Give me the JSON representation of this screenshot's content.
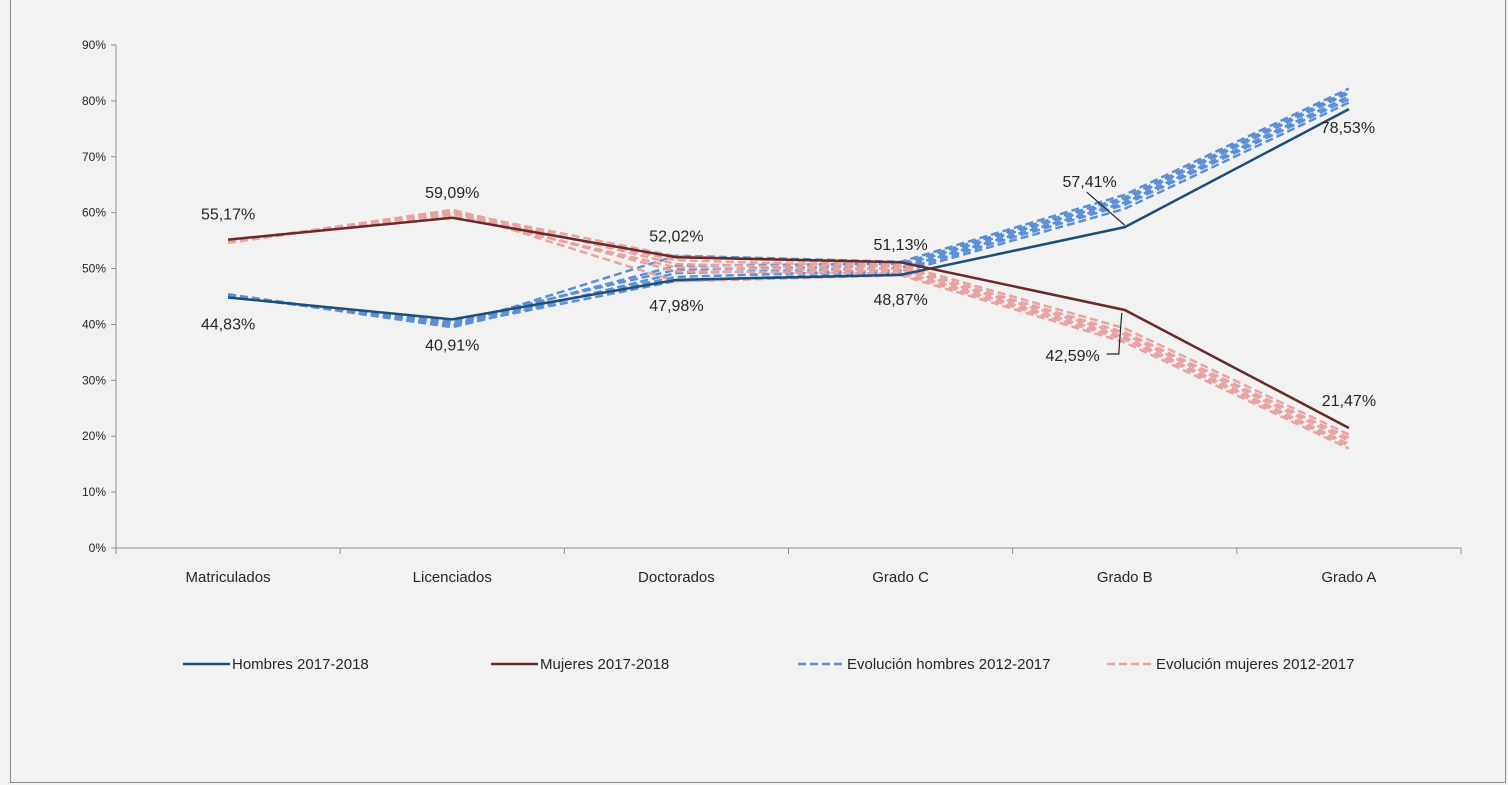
{
  "chart_data": {
    "type": "line",
    "categories": [
      "Matriculados",
      "Licenciados",
      "Doctorados",
      "Grado C",
      "Grado B",
      "Grado A"
    ],
    "ylim": [
      0,
      0.9
    ],
    "yticks": [
      "0%",
      "10%",
      "20%",
      "30%",
      "40%",
      "50%",
      "60%",
      "70%",
      "80%",
      "90%"
    ],
    "grid": false,
    "legend_position": "bottom",
    "series": [
      {
        "name": "Hombres 2017-2018",
        "color": "#1f4e79",
        "style": "solid",
        "values": [
          0.4483,
          0.4091,
          0.4798,
          0.4887,
          0.5741,
          0.7853
        ],
        "labels": [
          "44,83%",
          "40,91%",
          "47,98%",
          "48,87%",
          "57,41%",
          "78,53%"
        ]
      },
      {
        "name": "Mujeres 2017-2018",
        "color": "#6b2a2a",
        "style": "solid",
        "values": [
          0.5517,
          0.5909,
          0.5202,
          0.5113,
          0.4259,
          0.2147
        ],
        "labels": [
          "55,17%",
          "59,09%",
          "52,02%",
          "51,13%",
          "42,59%",
          "21,47%"
        ]
      },
      {
        "name": "Evolución hombres 2012-2017",
        "color": "#5b8fd6",
        "style": "dashed",
        "lines": [
          [
            0.452,
            0.398,
            0.478,
            0.493,
            0.607,
            0.797
          ],
          [
            0.45,
            0.402,
            0.485,
            0.497,
            0.614,
            0.803
          ],
          [
            0.453,
            0.395,
            0.492,
            0.501,
            0.618,
            0.808
          ],
          [
            0.449,
            0.405,
            0.498,
            0.505,
            0.623,
            0.814
          ],
          [
            0.451,
            0.4,
            0.505,
            0.509,
            0.627,
            0.818
          ],
          [
            0.454,
            0.397,
            0.523,
            0.512,
            0.632,
            0.822
          ]
        ]
      },
      {
        "name": "Evolución mujeres 2012-2017",
        "color": "#e8a3a0",
        "style": "dashed",
        "lines": [
          [
            0.548,
            0.602,
            0.522,
            0.507,
            0.393,
            0.203
          ],
          [
            0.55,
            0.598,
            0.515,
            0.503,
            0.386,
            0.197
          ],
          [
            0.547,
            0.605,
            0.508,
            0.499,
            0.382,
            0.192
          ],
          [
            0.551,
            0.595,
            0.502,
            0.495,
            0.377,
            0.186
          ],
          [
            0.549,
            0.6,
            0.495,
            0.491,
            0.373,
            0.182
          ],
          [
            0.546,
            0.603,
            0.477,
            0.488,
            0.368,
            0.178
          ]
        ]
      }
    ]
  }
}
